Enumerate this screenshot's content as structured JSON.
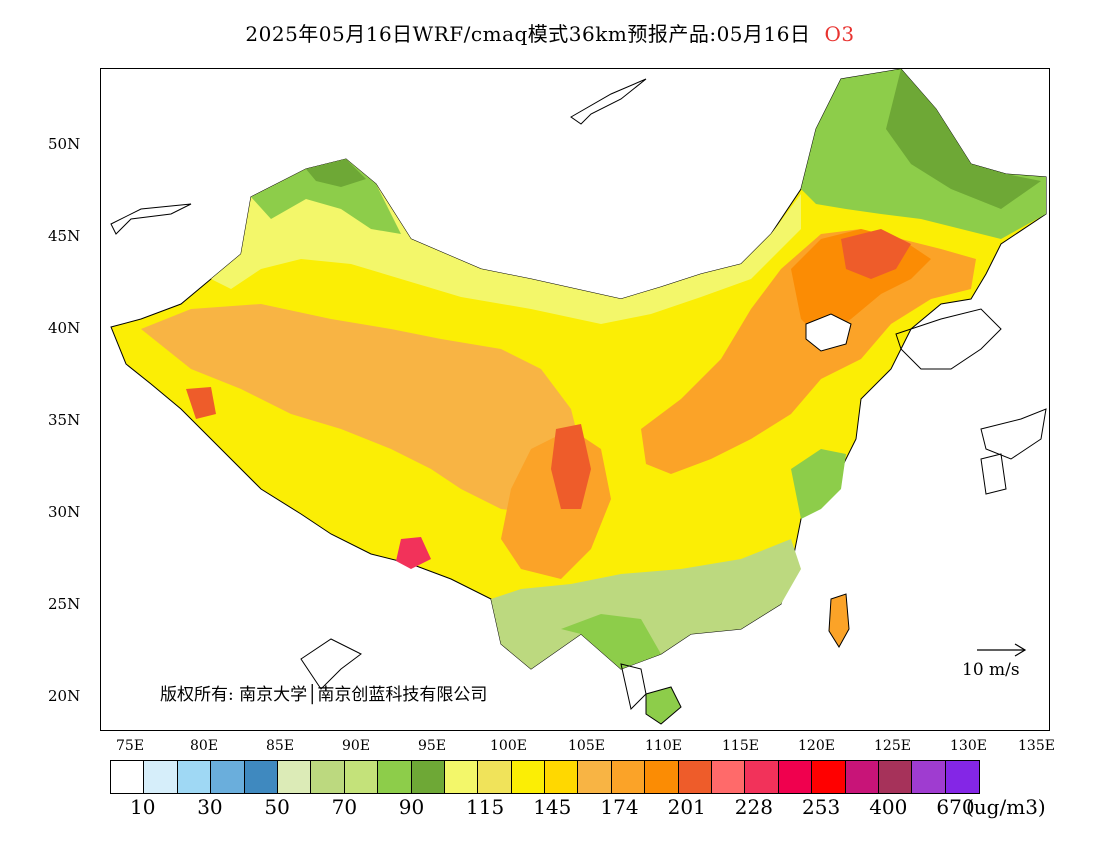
{
  "title": {
    "main": "2025年05月16日WRF/cmaq模式36km预报产品:05月16日",
    "species": "O3",
    "species_color": "#e8322f"
  },
  "map": {
    "lat_labels": [
      "50N",
      "45N",
      "40N",
      "35N",
      "30N",
      "25N",
      "20N"
    ],
    "lon_labels": [
      "75E",
      "80E",
      "85E",
      "90E",
      "95E",
      "100E",
      "105E",
      "110E",
      "115E",
      "120E",
      "125E",
      "130E",
      "135E"
    ],
    "copyright": "版权所有: 南京大学│南京创蓝科技有限公司",
    "wind_reference": "10 m/s"
  },
  "legend": {
    "colors": [
      "#ffffff",
      "#d6eefa",
      "#9fd8f4",
      "#6aaedc",
      "#3f89bf",
      "#dcebb7",
      "#bcd97f",
      "#c4e27a",
      "#8dcd4a",
      "#6ea836",
      "#f3f76a",
      "#f0e35a",
      "#fbee05",
      "#ffd800",
      "#f8b444",
      "#fba328",
      "#fb8c04",
      "#ee5c2a",
      "#ff6a6a",
      "#f2325a",
      "#f0004e",
      "#ff0000",
      "#c81478",
      "#a6325a",
      "#9f3cd0",
      "#8426e6"
    ],
    "labels": [
      "10",
      "30",
      "50",
      "70",
      "90",
      "115",
      "145",
      "174",
      "201",
      "228",
      "253",
      "400",
      "670"
    ],
    "unit": "(ug/m3)"
  }
}
